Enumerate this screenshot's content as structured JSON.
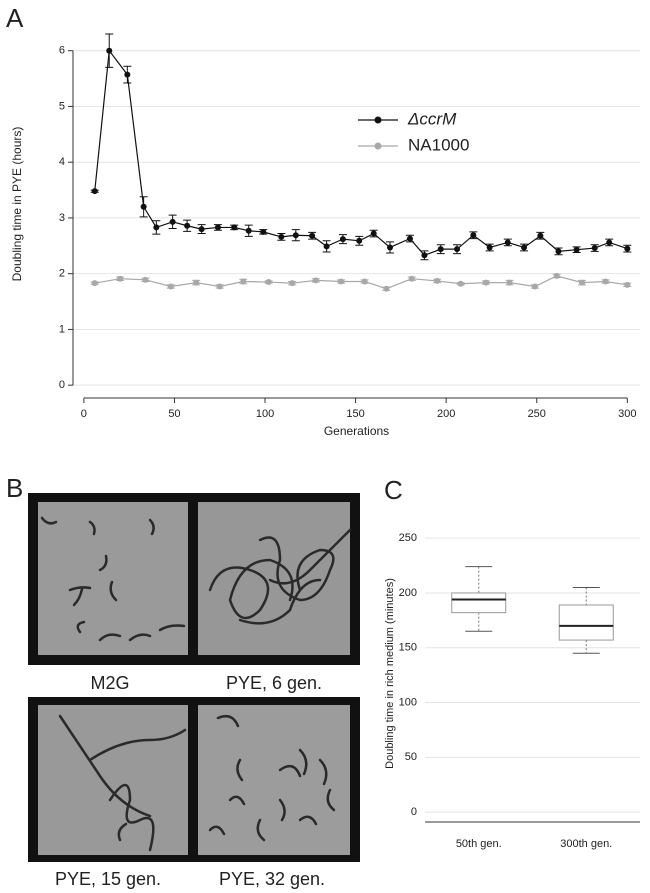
{
  "panel_labels": [
    "A",
    "B",
    "C"
  ],
  "micrographs": {
    "captions": [
      "M2G",
      "PYE, 6 gen.",
      "PYE, 15 gen.",
      "PYE, 32 gen."
    ]
  },
  "chart_data": [
    {
      "type": "line",
      "x_label": "Generations",
      "y_label": "Doubling time in PYE (hours)",
      "xlim": [
        -6,
        307
      ],
      "ylim": [
        -0.23,
        6.73
      ],
      "xticks": [
        0,
        50,
        100,
        150,
        200,
        250,
        300
      ],
      "yticks": [
        0,
        1,
        2,
        3,
        4,
        5,
        6
      ],
      "grid": true,
      "legend_position": "upper right",
      "series": [
        {
          "name": "ΔccrM",
          "color": "#111111",
          "x": [
            6,
            14,
            24,
            33,
            40,
            49,
            57,
            65,
            74,
            83,
            91,
            99,
            109,
            117,
            126,
            134,
            143,
            152,
            160,
            169,
            180,
            188,
            197,
            206,
            215,
            224,
            234,
            243,
            252,
            262,
            272,
            282,
            290,
            300
          ],
          "values": [
            3.48,
            6.0,
            5.57,
            3.2,
            2.83,
            2.93,
            2.86,
            2.8,
            2.83,
            2.83,
            2.77,
            2.75,
            2.66,
            2.69,
            2.68,
            2.49,
            2.62,
            2.59,
            2.72,
            2.47,
            2.63,
            2.33,
            2.44,
            2.44,
            2.69,
            2.47,
            2.56,
            2.47,
            2.68,
            2.4,
            2.43,
            2.46,
            2.56,
            2.45
          ],
          "errors": [
            0.02,
            0.3,
            0.15,
            0.18,
            0.12,
            0.12,
            0.1,
            0.08,
            0.05,
            0.04,
            0.1,
            0.04,
            0.06,
            0.1,
            0.06,
            0.1,
            0.08,
            0.08,
            0.06,
            0.1,
            0.06,
            0.08,
            0.08,
            0.08,
            0.06,
            0.06,
            0.06,
            0.06,
            0.06,
            0.06,
            0.05,
            0.06,
            0.06,
            0.06
          ]
        },
        {
          "name": "NA1000",
          "color": "#a8a8a8",
          "x": [
            6,
            20,
            34,
            48,
            62,
            75,
            88,
            102,
            115,
            128,
            142,
            155,
            167,
            181,
            195,
            208,
            222,
            235,
            249,
            261,
            275,
            288,
            300
          ],
          "values": [
            1.83,
            1.91,
            1.89,
            1.77,
            1.84,
            1.77,
            1.86,
            1.85,
            1.83,
            1.88,
            1.86,
            1.86,
            1.73,
            1.91,
            1.87,
            1.82,
            1.84,
            1.84,
            1.77,
            1.96,
            1.84,
            1.86,
            1.8
          ],
          "errors": [
            0.02,
            0.03,
            0.03,
            0.03,
            0.04,
            0.03,
            0.04,
            0.02,
            0.03,
            0.03,
            0.03,
            0.03,
            0.03,
            0.03,
            0.03,
            0.02,
            0.03,
            0.04,
            0.03,
            0.03,
            0.04,
            0.03,
            0.03
          ]
        }
      ]
    },
    {
      "type": "box",
      "y_label": "Doubling time in rich medium (minutes)",
      "categories": [
        "50th gen.",
        "300th gen."
      ],
      "ylim": [
        -9,
        262
      ],
      "yticks": [
        0,
        50,
        100,
        150,
        200,
        250
      ],
      "grid": true,
      "color": "#555555",
      "boxes": [
        {
          "min": 165,
          "q1": 182,
          "median": 194,
          "q3": 200,
          "max": 224
        },
        {
          "min": 145,
          "q1": 157,
          "median": 170,
          "q3": 189,
          "max": 205
        }
      ]
    }
  ]
}
